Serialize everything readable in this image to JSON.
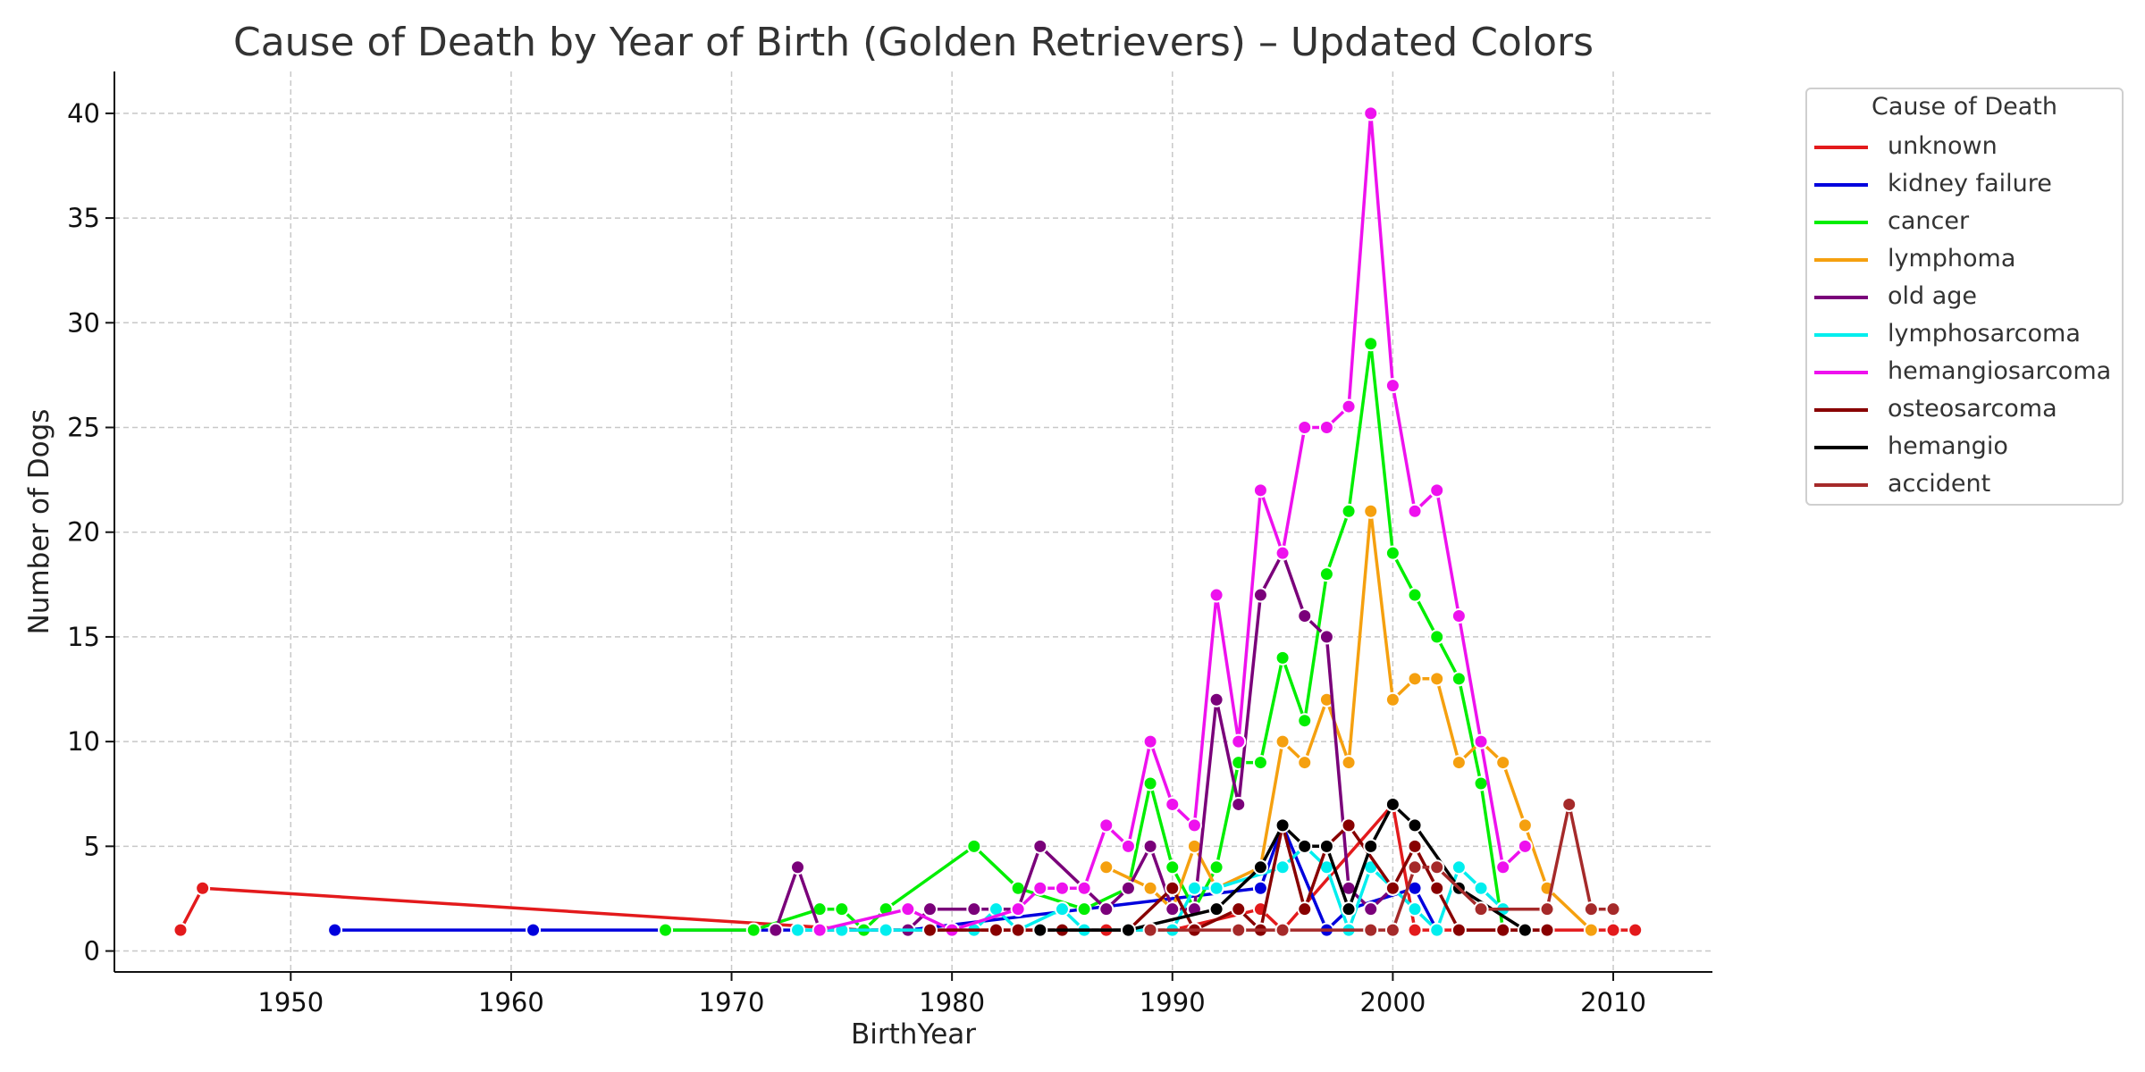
{
  "chart_data": {
    "type": "line",
    "title": "Cause of Death by Year of Birth (Golden Retrievers) – Updated Colors",
    "xlabel": "BirthYear",
    "ylabel": "Number of Dogs",
    "xlim": [
      1942,
      2014.5
    ],
    "ylim": [
      -1,
      42
    ],
    "xticks": [
      1950,
      1960,
      1970,
      1980,
      1990,
      2000,
      2010
    ],
    "yticks": [
      0,
      5,
      10,
      15,
      20,
      25,
      30,
      35,
      40
    ],
    "grid": true,
    "legend": {
      "title": "Cause of Death",
      "placement": "outside upper right"
    },
    "series": [
      {
        "name": "unknown",
        "color": "#e31a1c",
        "x": [
          1945,
          1946,
          1976,
          1987,
          1990,
          1994,
          1995,
          2000,
          2001,
          2002,
          2010,
          2011
        ],
        "y": [
          1,
          3,
          1,
          1,
          1,
          2,
          1,
          7,
          1,
          1,
          1,
          1
        ]
      },
      {
        "name": "kidney failure",
        "color": "#0000dd",
        "x": [
          1952,
          1961,
          1978,
          1994,
          1995,
          1997,
          1998,
          2001,
          2002
        ],
        "y": [
          1,
          1,
          1,
          3,
          6,
          1,
          2,
          3,
          1
        ]
      },
      {
        "name": "cancer",
        "color": "#00ee00",
        "x": [
          1967,
          1971,
          1974,
          1975,
          1976,
          1977,
          1981,
          1983,
          1986,
          1988,
          1989,
          1990,
          1991,
          1992,
          1993,
          1994,
          1995,
          1996,
          1997,
          1998,
          1999,
          2000,
          2001,
          2002,
          2003,
          2004,
          2005
        ],
        "y": [
          1,
          1,
          2,
          2,
          1,
          2,
          5,
          3,
          2,
          3,
          8,
          4,
          2,
          4,
          9,
          9,
          14,
          11,
          18,
          21,
          29,
          19,
          17,
          15,
          13,
          8,
          1
        ]
      },
      {
        "name": "lymphoma",
        "color": "#f5a00f",
        "x": [
          1987,
          1989,
          1990,
          1991,
          1992,
          1994,
          1995,
          1996,
          1997,
          1998,
          1999,
          2000,
          2001,
          2002,
          2003,
          2004,
          2005,
          2006,
          2007,
          2009
        ],
        "y": [
          4,
          3,
          2,
          5,
          3,
          4,
          10,
          9,
          12,
          9,
          21,
          12,
          13,
          13,
          9,
          10,
          9,
          6,
          3,
          1
        ]
      },
      {
        "name": "old age",
        "color": "#7a007a",
        "x": [
          1972,
          1973,
          1974,
          1978,
          1979,
          1981,
          1983,
          1984,
          1986,
          1987,
          1988,
          1989,
          1990,
          1991,
          1992,
          1993,
          1994,
          1995,
          1996,
          1997,
          1998,
          1999,
          2000
        ],
        "y": [
          1,
          4,
          1,
          1,
          2,
          2,
          2,
          5,
          3,
          2,
          3,
          5,
          2,
          2,
          12,
          7,
          17,
          19,
          16,
          15,
          3,
          2,
          3
        ]
      },
      {
        "name": "lymphosarcoma",
        "color": "#00eeee",
        "x": [
          1973,
          1975,
          1977,
          1979,
          1980,
          1981,
          1982,
          1983,
          1985,
          1986,
          1990,
          1991,
          1992,
          1995,
          1996,
          1997,
          1998,
          1999,
          2000,
          2001,
          2002,
          2003,
          2004,
          2005
        ],
        "y": [
          1,
          1,
          1,
          1,
          1,
          1,
          2,
          1,
          2,
          1,
          1,
          3,
          3,
          4,
          5,
          4,
          1,
          4,
          3,
          2,
          1,
          4,
          3,
          2
        ]
      },
      {
        "name": "hemangiosarcoma",
        "color": "#ee11ee",
        "x": [
          1974,
          1978,
          1980,
          1983,
          1984,
          1985,
          1986,
          1987,
          1988,
          1989,
          1990,
          1991,
          1992,
          1993,
          1994,
          1995,
          1996,
          1997,
          1998,
          1999,
          2000,
          2001,
          2002,
          2003,
          2004,
          2005,
          2006
        ],
        "y": [
          1,
          2,
          1,
          2,
          3,
          3,
          3,
          6,
          5,
          10,
          7,
          6,
          17,
          10,
          22,
          19,
          25,
          25,
          26,
          40,
          27,
          21,
          22,
          16,
          10,
          4,
          5
        ]
      },
      {
        "name": "osteosarcoma",
        "color": "#880000",
        "x": [
          1979,
          1982,
          1983,
          1985,
          1988,
          1990,
          1991,
          1993,
          1994,
          1995,
          1996,
          1997,
          1998,
          2000,
          2001,
          2002,
          2003,
          2005,
          2007
        ],
        "y": [
          1,
          1,
          1,
          1,
          1,
          3,
          1,
          2,
          1,
          6,
          2,
          5,
          6,
          3,
          5,
          3,
          1,
          1,
          1
        ]
      },
      {
        "name": "hemangio",
        "color": "#000000",
        "x": [
          1984,
          1988,
          1992,
          1994,
          1995,
          1996,
          1997,
          1998,
          1999,
          2000,
          2001,
          2003,
          2006
        ],
        "y": [
          1,
          1,
          2,
          4,
          6,
          5,
          5,
          2,
          5,
          7,
          6,
          3,
          1
        ]
      },
      {
        "name": "accident",
        "color": "#a52a2a",
        "x": [
          1989,
          1993,
          1995,
          1999,
          2000,
          2001,
          2002,
          2004,
          2007,
          2008,
          2009,
          2010
        ],
        "y": [
          1,
          1,
          1,
          1,
          1,
          4,
          4,
          2,
          2,
          7,
          2,
          2
        ]
      }
    ]
  }
}
